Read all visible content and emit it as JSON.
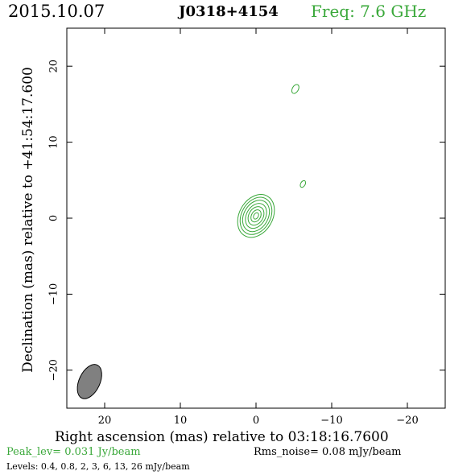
{
  "header": {
    "date": "2015.10.07",
    "source": "J0318+4154",
    "frequency": "Freq: 7.6 GHz"
  },
  "footer": {
    "peak_level": "Peak_lev=  0.031 Jy/beam",
    "rms_noise": "Rms_noise= 0.08 mJy/beam",
    "levels": "Levels: 0.4, 0.8,   2,   3,   6,  13,  26 mJy/beam"
  },
  "colors": {
    "contour": "#3aa83a",
    "beam_fill": "#808080",
    "axes": "#000000"
  },
  "chart_data": {
    "type": "contour",
    "xlabel": "Right ascension (mas) relative to 03:18:16.7600",
    "ylabel": "Declination (mas) relative to +41:54:17.600",
    "xlim": [
      25,
      -25
    ],
    "ylim": [
      -25,
      25
    ],
    "xticks": [
      20,
      10,
      0,
      -10,
      -20
    ],
    "yticks": [
      20,
      10,
      0,
      -10,
      -20
    ],
    "xtick_labels": [
      "20",
      "10",
      "0",
      "−10",
      "−20"
    ],
    "ytick_labels": [
      "20",
      "10",
      "0",
      "−10",
      "−20"
    ],
    "contour_levels_mJy": [
      0.4,
      0.8,
      2,
      3,
      6,
      13,
      26
    ],
    "core": {
      "center": [
        0,
        0.3
      ],
      "major_axes_mas": [
        6.0,
        5.2,
        4.4,
        3.5,
        2.6,
        1.7,
        0.9
      ],
      "minor_axes_mas": [
        4.4,
        3.8,
        3.2,
        2.5,
        1.9,
        1.2,
        0.6
      ],
      "position_angle_deg": 30
    },
    "small_features": [
      {
        "center": [
          -5.2,
          17.0
        ],
        "size_mas": 0.4
      },
      {
        "center": [
          -6.2,
          4.5
        ],
        "size_mas": 0.3
      }
    ],
    "beam": {
      "center": [
        22.0,
        -21.5
      ],
      "major_mas": 4.8,
      "minor_mas": 2.2,
      "position_angle_deg": 25
    }
  }
}
